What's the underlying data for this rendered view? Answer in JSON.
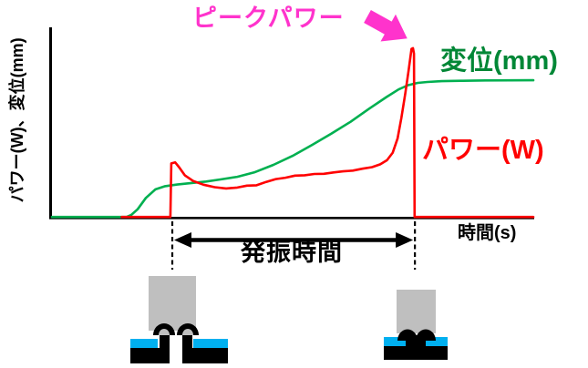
{
  "figure": {
    "labels": {
      "y_axis": "パワー(W)、変位(mm)",
      "x_axis": "時間(s)",
      "peak_power": "ピークパワー",
      "displacement": "変位(mm)",
      "power": "パワー(W)",
      "oscillation_time": "発振時間"
    },
    "icons": {
      "peak_arrow": "magenta-block-arrow-pointing-to-peak",
      "oscillation_arrow": "black-double-headed-arrow",
      "before_illustration": "horn-pressing-unmelted-bosses",
      "after_illustration": "horn-pressing-melted-bosses"
    }
  },
  "colors": {
    "power_red": "#FF0000",
    "displacement_green": "#00B050",
    "displacement_label_green": "#008736",
    "peak_magenta": "#FF33CC",
    "axis_black": "#000000",
    "horn_gray": "#BFBFBF",
    "material_cyan": "#00B0F0",
    "part_black": "#000000"
  },
  "chart_data": {
    "type": "line",
    "title": "",
    "xlabel": "時間(s)",
    "ylabel": "パワー(W)、変位(mm)",
    "x_ticks": [],
    "y_ticks": [],
    "grid": false,
    "legend_position": "inline-labels",
    "axis_note": "axes carry no numeric ticks; series points are normalized 0-100 in both x (time) and y (power/displacement)",
    "series": [
      {
        "id": "displacement",
        "name": "変位(mm)",
        "color": "#00B050",
        "points": [
          [
            0,
            0.4
          ],
          [
            15.5,
            0.4
          ],
          [
            16.5,
            1.5
          ],
          [
            17.8,
            4.5
          ],
          [
            19.5,
            10.5
          ],
          [
            21.5,
            15
          ],
          [
            23.5,
            16.7
          ],
          [
            26,
            17.6
          ],
          [
            29,
            18.4
          ],
          [
            32,
            19.2
          ],
          [
            35,
            20.3
          ],
          [
            38.5,
            21.7
          ],
          [
            42,
            24
          ],
          [
            46,
            28
          ],
          [
            50,
            32.8
          ],
          [
            54,
            38.5
          ],
          [
            58,
            44.5
          ],
          [
            62,
            50.8
          ],
          [
            66,
            58
          ],
          [
            69.5,
            64
          ],
          [
            72,
            68
          ],
          [
            74,
            70.3
          ],
          [
            76,
            71.5
          ],
          [
            78,
            72
          ],
          [
            81,
            72.4
          ],
          [
            85,
            72.6
          ],
          [
            90,
            72.8
          ],
          [
            100,
            72.9
          ]
        ]
      },
      {
        "id": "power",
        "name": "パワー(W)",
        "color": "#FF0000",
        "points": [
          [
            14.5,
            0.4
          ],
          [
            24.6,
            0.4
          ],
          [
            24.8,
            28.8
          ],
          [
            25.6,
            29.3
          ],
          [
            26.4,
            26.8
          ],
          [
            27.6,
            22.5
          ],
          [
            29.3,
            19.5
          ],
          [
            31.5,
            17.5
          ],
          [
            33.8,
            16.2
          ],
          [
            36.2,
            15.5
          ],
          [
            38.5,
            16
          ],
          [
            40.5,
            17
          ],
          [
            42.5,
            17.2
          ],
          [
            44.5,
            19
          ],
          [
            46.5,
            20.5
          ],
          [
            48.5,
            21.2
          ],
          [
            50.5,
            22.3
          ],
          [
            52.5,
            22.5
          ],
          [
            54.5,
            23.2
          ],
          [
            56.5,
            23.3
          ],
          [
            58.5,
            24
          ],
          [
            60.5,
            24.6
          ],
          [
            62.5,
            25
          ],
          [
            64.5,
            26
          ],
          [
            66.5,
            26.8
          ],
          [
            68.2,
            28.3
          ],
          [
            69.6,
            30.5
          ],
          [
            70.8,
            34.5
          ],
          [
            71.8,
            42
          ],
          [
            72.6,
            53
          ],
          [
            73.4,
            66
          ],
          [
            74.1,
            78
          ],
          [
            74.7,
            89.5
          ],
          [
            75,
            89.9
          ],
          [
            75.2,
            87
          ],
          [
            75.35,
            0.4
          ],
          [
            100,
            0.4
          ]
        ]
      }
    ],
    "annotations": {
      "peak_power": {
        "label": "ピークパワー",
        "series": "power",
        "x": 75,
        "y": 90
      },
      "oscillation_window": {
        "label": "発振時間",
        "x_start": 25,
        "x_end": 75.4
      }
    }
  }
}
